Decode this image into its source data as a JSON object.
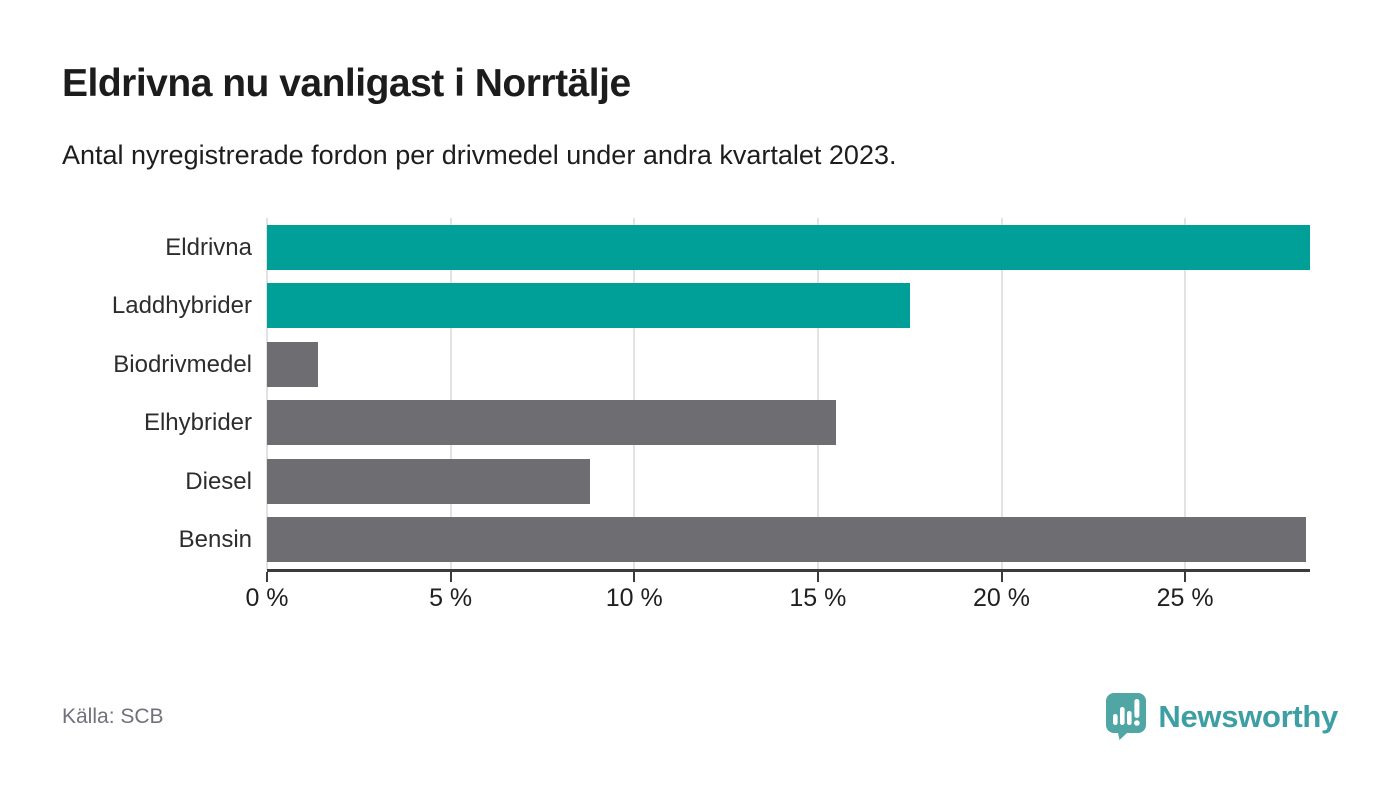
{
  "header": {
    "title": "Eldrivna nu vanligast i Norrtälje",
    "subtitle": "Antal nyregistrerade fordon per drivmedel under andra kvartalet 2023."
  },
  "chart_data": {
    "type": "bar",
    "orientation": "horizontal",
    "title": "Eldrivna nu vanligast i Norrtälje",
    "subtitle": "Antal nyregistrerade fordon per drivmedel under andra kvartalet 2023.",
    "categories": [
      "Eldrivna",
      "Laddhybrider",
      "Biodrivmedel",
      "Elhybrider",
      "Diesel",
      "Bensin"
    ],
    "values": [
      28.4,
      17.5,
      1.4,
      15.5,
      8.8,
      28.3
    ],
    "unit": "%",
    "colors": [
      "#00a099",
      "#00a099",
      "#6e6e72",
      "#6e6e72",
      "#6e6e72",
      "#6e6e72"
    ],
    "highlight_color": "#00a099",
    "default_color": "#6e6e72",
    "xlim": [
      0,
      28.4
    ],
    "x_ticks": [
      {
        "value": 0,
        "label": "0 %"
      },
      {
        "value": 5,
        "label": "5 %"
      },
      {
        "value": 10,
        "label": "10 %"
      },
      {
        "value": 15,
        "label": "15 %"
      },
      {
        "value": 20,
        "label": "20 %"
      },
      {
        "value": 25,
        "label": "25 %"
      }
    ],
    "grid": true,
    "gridline_color": "#e2e2e2",
    "axis_color": "#3b3b3b"
  },
  "footer": {
    "source": "Källa: SCB",
    "brand": "Newsworthy",
    "brand_color": "#3d9ea3",
    "logo_color": "#4fa6a4"
  }
}
